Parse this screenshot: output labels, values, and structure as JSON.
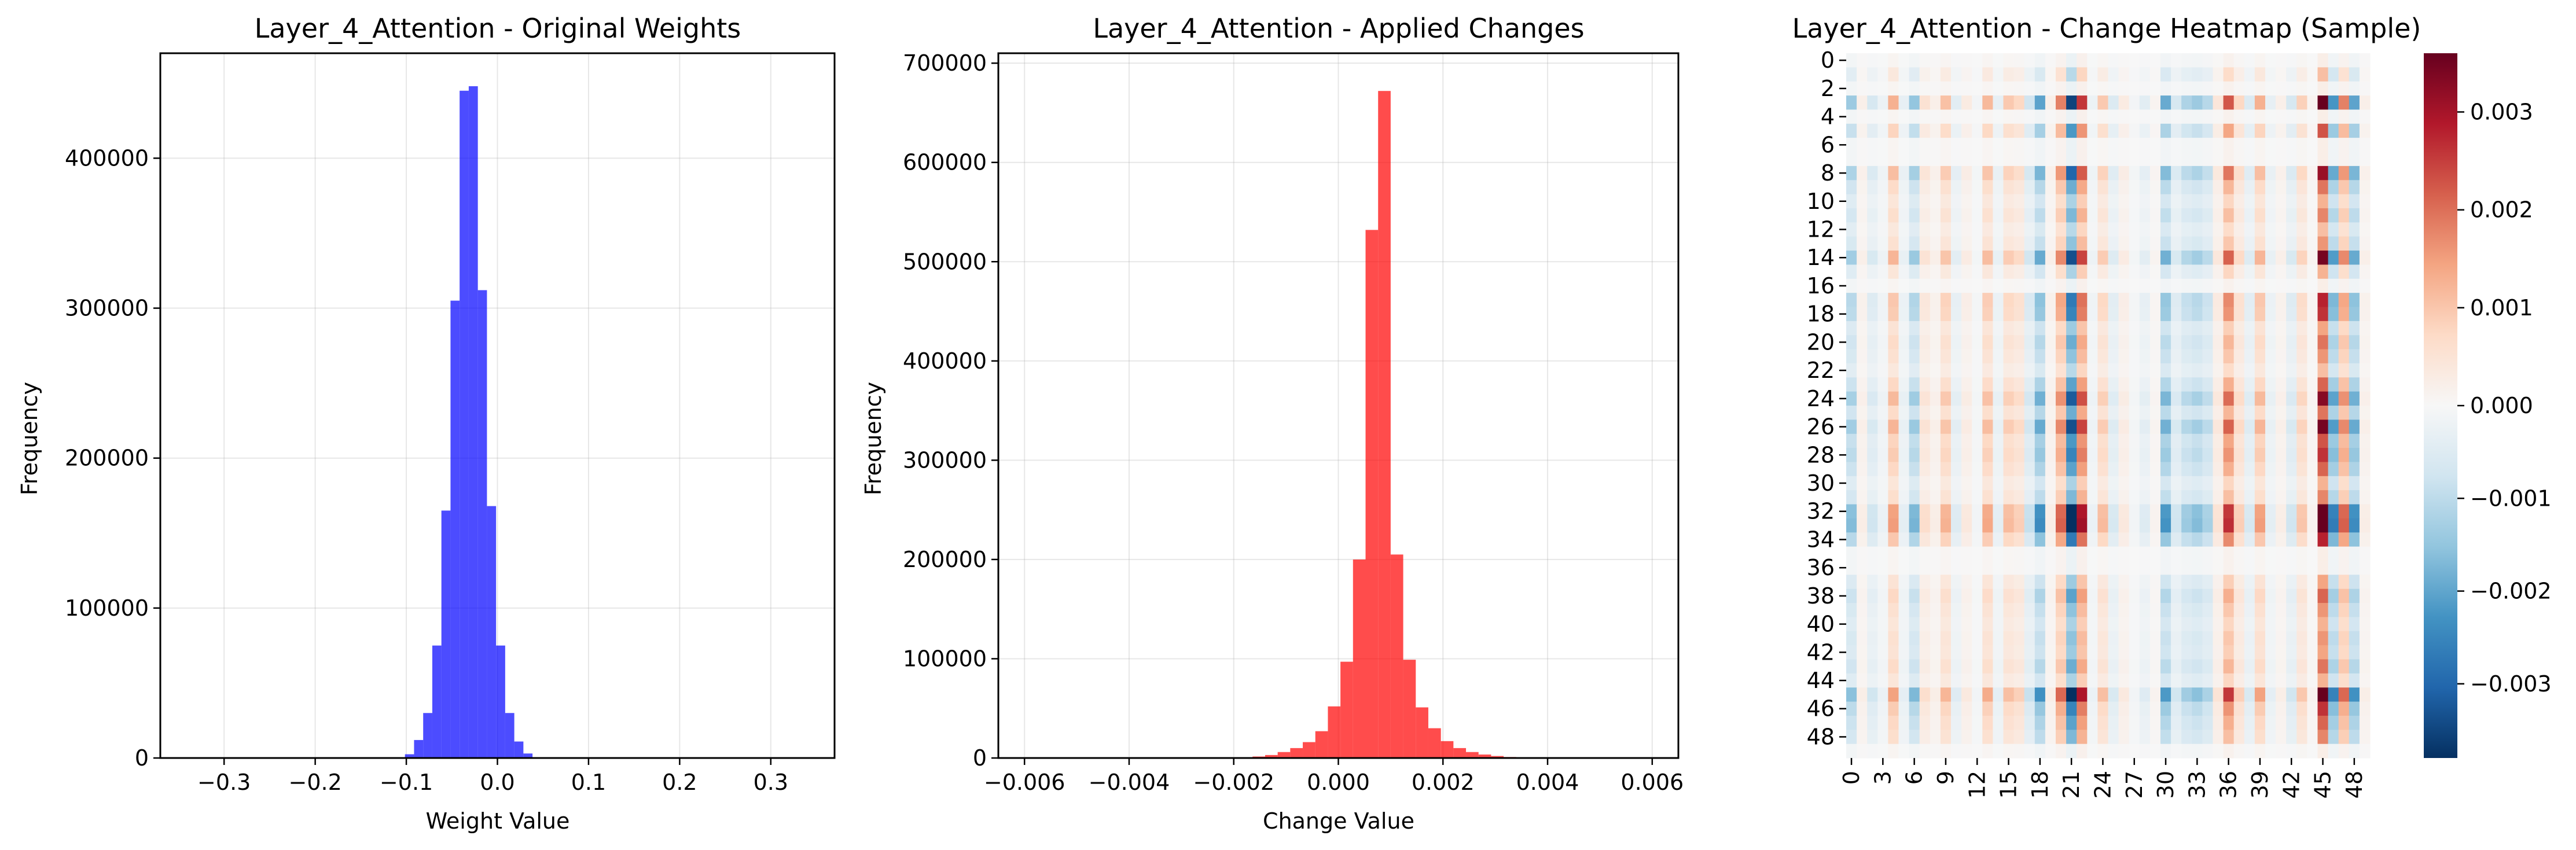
{
  "chart_data": [
    {
      "type": "bar",
      "title": "Layer_4_Attention - Original Weights",
      "xlabel": "Weight Value",
      "ylabel": "Frequency",
      "xlim": [
        -0.37,
        0.37
      ],
      "ylim": [
        0,
        470000
      ],
      "xticks": [
        -0.3,
        -0.2,
        -0.1,
        0.0,
        0.1,
        0.2,
        0.3
      ],
      "xtick_labels": [
        "−0.3",
        "−0.2",
        "−0.1",
        "0.0",
        "0.1",
        "0.2",
        "0.3"
      ],
      "yticks": [
        0,
        100000,
        200000,
        300000,
        400000
      ],
      "ytick_labels": [
        "0",
        "100000",
        "200000",
        "300000",
        "400000"
      ],
      "grid": true,
      "color": "#0000ff",
      "bins": {
        "start": -0.1115,
        "width": 0.01,
        "values": [
          500,
          2500,
          12000,
          30000,
          75000,
          165000,
          305000,
          445000,
          448000,
          312000,
          168000,
          75000,
          30000,
          11000,
          3000,
          500
        ]
      }
    },
    {
      "type": "bar",
      "title": "Layer_4_Attention - Applied Changes",
      "xlabel": "Change Value",
      "ylabel": "Frequency",
      "xlim": [
        -0.0065,
        0.0065
      ],
      "ylim": [
        0,
        710000
      ],
      "xticks": [
        -0.006,
        -0.004,
        -0.002,
        0.0,
        0.002,
        0.004,
        0.006
      ],
      "xtick_labels": [
        "−0.006",
        "−0.004",
        "−0.002",
        "0.000",
        "0.002",
        "0.004",
        "0.006"
      ],
      "yticks": [
        0,
        100000,
        200000,
        300000,
        400000,
        500000,
        600000,
        700000
      ],
      "ytick_labels": [
        "0",
        "100000",
        "200000",
        "300000",
        "400000",
        "500000",
        "600000",
        "700000"
      ],
      "grid": true,
      "color": "#ff0000",
      "bins": {
        "start": -0.0062,
        "width": 0.00024,
        "values": [
          0,
          0,
          0,
          0,
          0,
          0,
          0,
          0,
          0,
          0,
          0,
          0,
          0,
          0,
          0,
          0,
          0,
          300,
          800,
          1500,
          3000,
          6000,
          10000,
          16000,
          27000,
          52000,
          97000,
          200000,
          532000,
          672000,
          205000,
          99000,
          51000,
          30000,
          17000,
          10000,
          6000,
          3500,
          2000,
          1000,
          500,
          200,
          0,
          0,
          0,
          0,
          0,
          0,
          0,
          0,
          0,
          0
        ]
      }
    },
    {
      "type": "heatmap",
      "title": "Layer_4_Attention - Change Heatmap (Sample)",
      "rows": 50,
      "cols": 50,
      "xtick_labels": [
        "0",
        "3",
        "6",
        "9",
        "12",
        "15",
        "18",
        "21",
        "24",
        "27",
        "30",
        "33",
        "36",
        "39",
        "42",
        "45",
        "48"
      ],
      "ytick_labels": [
        "0",
        "2",
        "4",
        "6",
        "8",
        "10",
        "12",
        "14",
        "16",
        "18",
        "20",
        "22",
        "24",
        "26",
        "28",
        "30",
        "32",
        "34",
        "36",
        "38",
        "40",
        "42",
        "44",
        "46",
        "48"
      ],
      "colormap": "RdBu_r",
      "value_range": [
        -0.0038,
        0.0036
      ],
      "colorbar_ticks": [
        0.003,
        0.002,
        0.001,
        0.0,
        -0.001,
        -0.002,
        -0.003
      ],
      "colorbar_labels": [
        "0.003",
        "0.002",
        "0.001",
        "0.000",
        "−0.001",
        "−0.002",
        "−0.003"
      ],
      "row_factors": [
        0.0,
        0.25,
        0.0,
        1.0,
        0.0,
        0.6,
        0.0,
        0.0,
        0.85,
        0.5,
        0.3,
        0.45,
        0.25,
        0.4,
        0.95,
        0.3,
        0.0,
        0.75,
        0.7,
        0.35,
        0.5,
        0.4,
        0.25,
        0.55,
        0.9,
        0.5,
        0.95,
        0.6,
        0.7,
        0.55,
        0.3,
        0.45,
        1.15,
        1.2,
        0.75,
        0.0,
        0.0,
        0.35,
        0.55,
        0.4,
        0.3,
        0.4,
        0.35,
        0.5,
        0.3,
        1.15,
        0.7,
        0.55,
        0.45,
        0.0
      ],
      "column_values": [
        -0.0013,
        0.0002,
        -0.0006,
        -0.0002,
        0.0012,
        -0.0003,
        -0.0014,
        0.0005,
        0.0002,
        0.001,
        -0.0004,
        0.0003,
        -0.0001,
        0.0011,
        -0.0003,
        0.0009,
        0.0007,
        -0.0007,
        -0.0019,
        0.0002,
        0.0017,
        -0.0033,
        0.0024,
        -0.0002,
        0.0009,
        -0.0005,
        0.0003,
        -0.0001,
        -0.0004,
        0.0001,
        -0.0018,
        -0.0006,
        -0.0011,
        -0.0013,
        -0.001,
        0.0004,
        0.0021,
        0.0007,
        -0.0005,
        0.0012,
        -0.0003,
        0.0002,
        -0.0006,
        0.0008,
        0.0001,
        0.0034,
        -0.0021,
        0.0017,
        -0.0019,
        0.0002
      ]
    }
  ]
}
